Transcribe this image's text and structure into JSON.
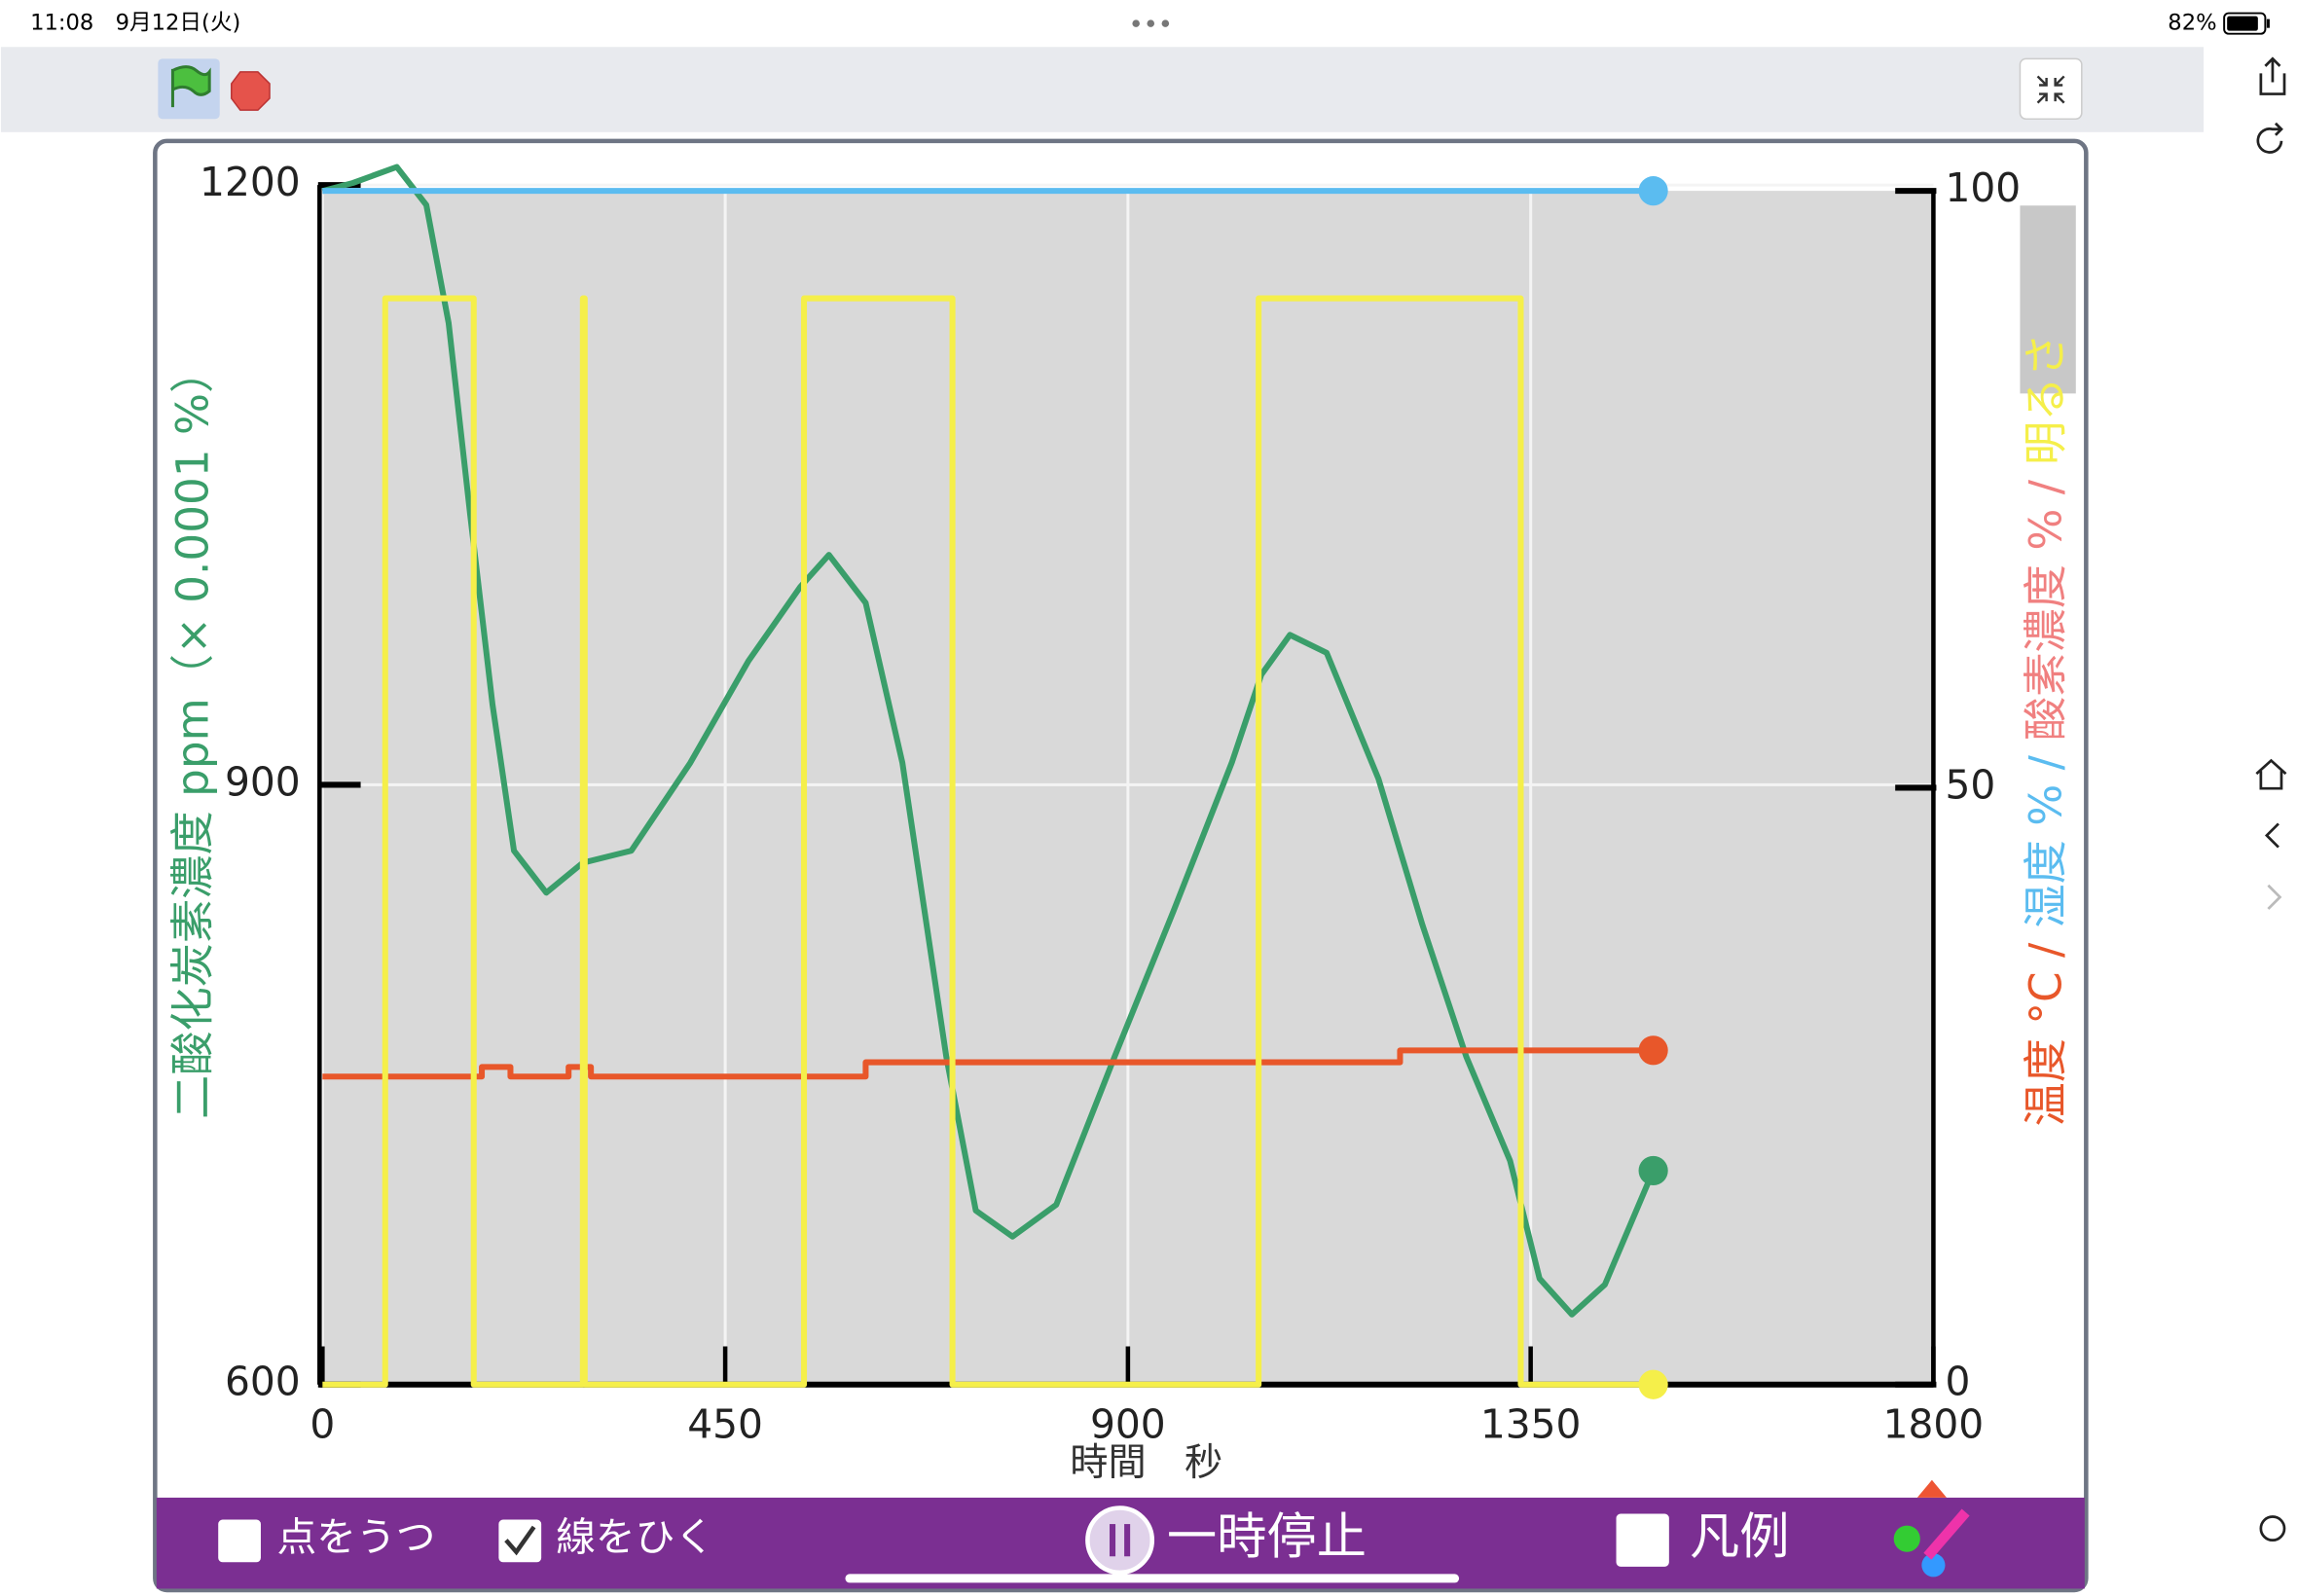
{
  "status_bar": {
    "time": "11:08",
    "date": "9月12日(火)",
    "battery": "82%"
  },
  "controls": {
    "plot_points": {
      "label": "点をうつ",
      "checked": false
    },
    "draw_lines": {
      "label": "線をひく",
      "checked": true
    },
    "pause": "一時停止",
    "legend": {
      "label": "凡例",
      "checked": false
    }
  },
  "chart_data": {
    "type": "line",
    "x_label": "時間　秒",
    "y_label": "二酸化炭素濃度 ppm（× 0.0001 %）",
    "y2_labels": [
      "温度 °C /",
      "湿度 % /",
      "酸素濃度 % /",
      "明るさ"
    ],
    "y2_label_colors": [
      "#e8572a",
      "#5bbcf0",
      "#f08080",
      "#f5ef4a"
    ],
    "xlim": [
      0,
      1800
    ],
    "xticks": [
      0,
      450,
      900,
      1350,
      1800
    ],
    "ylim": [
      600,
      1200
    ],
    "yticks": [
      600,
      900,
      1200
    ],
    "y2lim": [
      0,
      100
    ],
    "y2ticks": [
      0,
      50,
      100
    ],
    "grid": true,
    "series": [
      {
        "color": "#3a9e6a",
        "x": [
          0,
          34,
          83,
          116,
          141,
          165,
          190,
          214,
          250,
          291,
          345,
          411,
          476,
          534,
          566,
          607,
          648,
          697,
          730,
          771,
          820,
          885,
          951,
          1016,
          1049,
          1081,
          1122,
          1180,
          1229,
          1278,
          1327,
          1360,
          1396,
          1433,
          1487
        ],
        "values": [
          1197,
          1201,
          1209,
          1190,
          1131,
          1035,
          940,
          867,
          846,
          861,
          867,
          911,
          962,
          999,
          1015,
          991,
          911,
          764,
          687,
          674,
          690,
          764,
          837,
          911,
          955,
          975,
          966,
          903,
          830,
          764,
          712,
          653,
          635,
          650,
          707
        ]
      },
      {
        "color": "#e8572a",
        "axis": "y2",
        "x": [
          0,
          178,
          178,
          210,
          210,
          275,
          275,
          300,
          300,
          607,
          607,
          1204,
          1204,
          1487
        ],
        "values": [
          25.8,
          25.8,
          26.6,
          26.6,
          25.8,
          25.8,
          26.6,
          26.6,
          25.8,
          25.8,
          27,
          27,
          28,
          28
        ]
      },
      {
        "color": "#5bbcf0",
        "axis": "y2",
        "x": [
          0,
          1487
        ],
        "values": [
          100,
          100
        ]
      },
      {
        "color": "#f5ef4a",
        "axis": "y2",
        "x": [
          0,
          70,
          70,
          169,
          169,
          291,
          291,
          293,
          293,
          538,
          538,
          704,
          704,
          1046,
          1046,
          1339,
          1339,
          1487
        ],
        "values": [
          0,
          0,
          91,
          91,
          0,
          0,
          91,
          91,
          0,
          0,
          91,
          91,
          0,
          0,
          91,
          91,
          0,
          0
        ]
      }
    ]
  }
}
